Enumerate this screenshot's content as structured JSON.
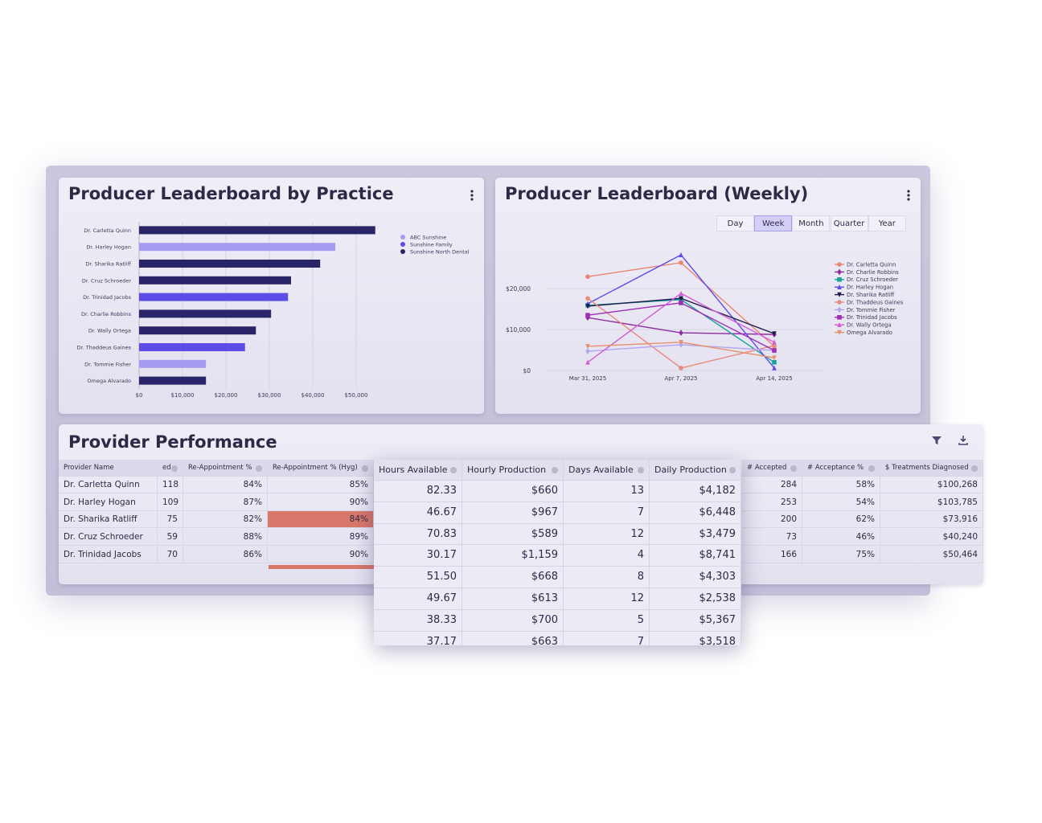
{
  "chart_data": [
    {
      "type": "bar",
      "orientation": "horizontal",
      "title": "Producer Leaderboard by Practice",
      "categories": [
        "Dr. Carletta Quinn",
        "Dr. Harley Hogan",
        "Dr. Sharika Ratliff",
        "Dr. Cruz Schroeder",
        "Dr. Trinidad Jacobs",
        "Dr. Charlie Robbins",
        "Dr. Wally Ortega",
        "Dr. Thaddeus Gaines",
        "Dr. Tommie Fisher",
        "Omega Alvarado"
      ],
      "series": [
        {
          "name": "ABC Sunshine",
          "color": "#a59cf2",
          "values": [
            null,
            45200,
            null,
            null,
            null,
            null,
            null,
            null,
            15400,
            null
          ]
        },
        {
          "name": "Sunshine Family",
          "color": "#5b4de6",
          "values": [
            null,
            null,
            null,
            null,
            34300,
            null,
            null,
            24400,
            null,
            null
          ]
        },
        {
          "name": "Sunshine North Dental",
          "color": "#2a2468",
          "values": [
            54400,
            null,
            41700,
            35000,
            null,
            30400,
            26900,
            null,
            null,
            15400
          ]
        }
      ],
      "xlim": [
        0,
        55000
      ],
      "xticks": [
        {
          "value": 0,
          "label": "$0"
        },
        {
          "value": 10000,
          "label": "$10,000"
        },
        {
          "value": 20000,
          "label": "$20,000"
        },
        {
          "value": 30000,
          "label": "$30,000"
        },
        {
          "value": 40000,
          "label": "$40,000"
        },
        {
          "value": 50000,
          "label": "$50,000"
        }
      ],
      "grid": true,
      "legend": "top-right"
    },
    {
      "type": "line",
      "title": "Producer Leaderboard (Weekly)",
      "period_options": [
        "Day",
        "Week",
        "Month",
        "Quarter",
        "Year"
      ],
      "selected_period": "Week",
      "x": [
        "Mar 31, 2025",
        "Apr 7, 2025",
        "Apr 14, 2025"
      ],
      "series": [
        {
          "name": "Dr. Carletta Quinn",
          "color": "#e8866f",
          "marker": "circle",
          "values": [
            22900,
            26300,
            5900
          ]
        },
        {
          "name": "Dr. Charlie Robbins",
          "color": "#8e2fa0",
          "marker": "diamond",
          "values": [
            12900,
            9200,
            8800
          ]
        },
        {
          "name": "Dr. Cruz Schroeder",
          "color": "#1aa39a",
          "marker": "square",
          "values": [
            15900,
            17300,
            2000
          ]
        },
        {
          "name": "Dr. Harley Hogan",
          "color": "#5b4de6",
          "marker": "triangle",
          "values": [
            16300,
            28200,
            600
          ]
        },
        {
          "name": "Dr. Sharika Ratliff",
          "color": "#1f1c4d",
          "marker": "triangle-down",
          "values": [
            15700,
            17600,
            9000
          ]
        },
        {
          "name": "Dr. Thaddeus Gaines",
          "color": "#e88a7e",
          "marker": "circle",
          "values": [
            17600,
            600,
            6100
          ]
        },
        {
          "name": "Dr. Tommie Fisher",
          "color": "#b3a6f0",
          "marker": "diamond",
          "values": [
            4700,
            6300,
            4900
          ]
        },
        {
          "name": "Dr. Trinidad Jacobs",
          "color": "#9d2eb5",
          "marker": "square",
          "values": [
            13500,
            16500,
            4900
          ]
        },
        {
          "name": "Dr. Wally Ortega",
          "color": "#d35bd6",
          "marker": "triangle",
          "values": [
            2000,
            18800,
            6900
          ]
        },
        {
          "name": "Omega Alvarado",
          "color": "#e8906a",
          "marker": "triangle-down",
          "values": [
            5900,
            6900,
            3100
          ]
        }
      ],
      "ylim": [
        0,
        30000
      ],
      "yticks": [
        {
          "value": 0,
          "label": "$0"
        },
        {
          "value": 10000,
          "label": "$10,000"
        },
        {
          "value": 20000,
          "label": "$20,000"
        }
      ],
      "grid": true,
      "legend": "right"
    }
  ],
  "provider_performance": {
    "title": "Provider Performance",
    "columns": [
      "Provider Name",
      "ed",
      "Re-Appointment %",
      "Re-Appointment % (Hyg)",
      "# Accepted",
      "# Acceptance %",
      "$ Treatments Diagnosed"
    ],
    "rows": [
      [
        "Dr. Carletta Quinn",
        "118",
        "84%",
        "85%",
        "284",
        "58%",
        "$100,268"
      ],
      [
        "Dr. Harley Hogan",
        "109",
        "87%",
        "90%",
        "253",
        "54%",
        "$103,785"
      ],
      [
        "Dr. Sharika Ratliff",
        "75",
        "82%",
        "84%",
        "200",
        "62%",
        "$73,916"
      ],
      [
        "Dr. Cruz Schroeder",
        "59",
        "88%",
        "89%",
        "73",
        "46%",
        "$40,240"
      ],
      [
        "Dr. Trinidad Jacobs",
        "70",
        "86%",
        "90%",
        "166",
        "75%",
        "$50,464"
      ]
    ],
    "highlight_cells": [
      {
        "row": 2,
        "col": 3,
        "color": "#d9776a"
      }
    ]
  },
  "overlay_table": {
    "columns": [
      "Hours Available",
      "Hourly Production",
      "Days Available",
      "Daily Production"
    ],
    "rows": [
      [
        "82.33",
        "$660",
        "13",
        "$4,182"
      ],
      [
        "46.67",
        "$967",
        "7",
        "$6,448"
      ],
      [
        "70.83",
        "$589",
        "12",
        "$3,479"
      ],
      [
        "30.17",
        "$1,159",
        "4",
        "$8,741"
      ],
      [
        "51.50",
        "$668",
        "8",
        "$4,303"
      ],
      [
        "49.67",
        "$613",
        "12",
        "$2,538"
      ],
      [
        "38.33",
        "$700",
        "5",
        "$5,367"
      ],
      [
        "37.17",
        "$663",
        "7",
        "$3,518"
      ]
    ]
  }
}
